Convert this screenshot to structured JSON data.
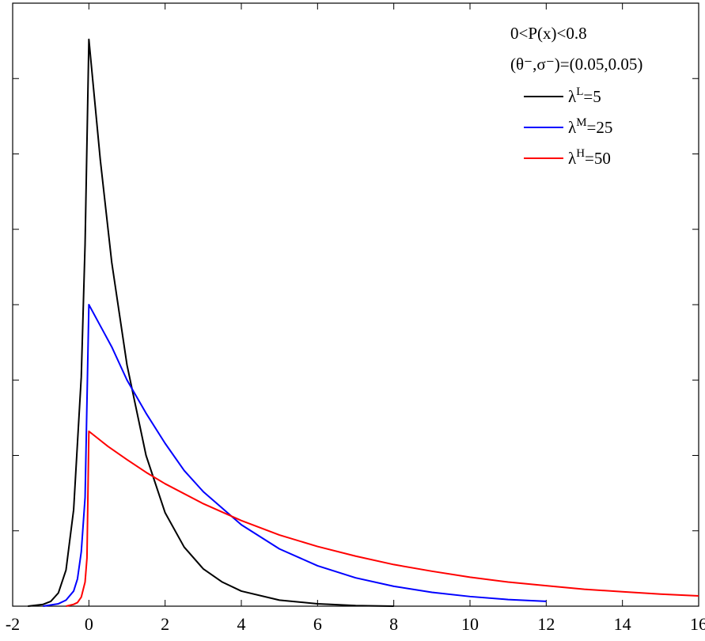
{
  "chart_data": {
    "type": "line",
    "title": "",
    "xlabel": "",
    "ylabel": "",
    "xlim": [
      -2,
      16
    ],
    "ylim": [
      0,
      1
    ],
    "x_ticks": [
      -2,
      0,
      2,
      4,
      6,
      8,
      10,
      12,
      14,
      16
    ],
    "x_tick_labels": [
      "-2",
      "0",
      "2",
      "4",
      "6",
      "8",
      "10",
      "12",
      "14",
      "16"
    ],
    "grid": false,
    "legend_position": "top-right",
    "annotations": [
      "0<P(x)<0.8",
      "(θ⁻,σ⁻)=(0.05,0.05)"
    ],
    "series": [
      {
        "name": "λ^L=5",
        "name_base": "λ",
        "name_sup": "L",
        "name_value": "=5",
        "color": "#000000",
        "x": [
          -1.6,
          -1.2,
          -1.0,
          -0.8,
          -0.6,
          -0.4,
          -0.2,
          -0.1,
          0.0,
          0.3,
          0.6,
          1.0,
          1.5,
          2.0,
          2.5,
          3.0,
          3.5,
          4.0,
          5.0,
          6.0,
          7.0,
          8.0
        ],
        "y": [
          0.0,
          0.003,
          0.008,
          0.022,
          0.06,
          0.16,
          0.38,
          0.6,
          0.94,
          0.74,
          0.57,
          0.4,
          0.25,
          0.155,
          0.098,
          0.062,
          0.04,
          0.025,
          0.01,
          0.004,
          0.001,
          0.0
        ]
      },
      {
        "name": "λ^M=25",
        "name_base": "λ",
        "name_sup": "M",
        "name_value": "=25",
        "color": "#0000ff",
        "x": [
          -1.2,
          -0.8,
          -0.6,
          -0.4,
          -0.3,
          -0.2,
          -0.1,
          0.0,
          0.3,
          0.6,
          1.0,
          1.5,
          2.0,
          2.5,
          3.0,
          4.0,
          5.0,
          6.0,
          7.0,
          8.0,
          9.0,
          10.0,
          11.0,
          12.0
        ],
        "y": [
          0.0,
          0.004,
          0.01,
          0.025,
          0.045,
          0.09,
          0.18,
          0.5,
          0.465,
          0.43,
          0.375,
          0.32,
          0.27,
          0.225,
          0.19,
          0.135,
          0.095,
          0.067,
          0.047,
          0.033,
          0.023,
          0.016,
          0.011,
          0.008
        ]
      },
      {
        "name": "λ^H=50",
        "name_base": "λ",
        "name_sup": "H",
        "name_value": "=50",
        "color": "#ff0000",
        "x": [
          -0.6,
          -0.4,
          -0.3,
          -0.2,
          -0.1,
          -0.05,
          0.0,
          0.5,
          1.0,
          1.5,
          2.0,
          3.0,
          4.0,
          5.0,
          6.0,
          7.0,
          8.0,
          9.0,
          10.0,
          11.0,
          12.0,
          13.0,
          14.0,
          15.0,
          16.0
        ],
        "y": [
          0.0,
          0.003,
          0.006,
          0.015,
          0.04,
          0.08,
          0.29,
          0.265,
          0.243,
          0.222,
          0.203,
          0.17,
          0.142,
          0.118,
          0.099,
          0.083,
          0.069,
          0.058,
          0.048,
          0.04,
          0.034,
          0.028,
          0.024,
          0.02,
          0.017
        ]
      }
    ]
  }
}
